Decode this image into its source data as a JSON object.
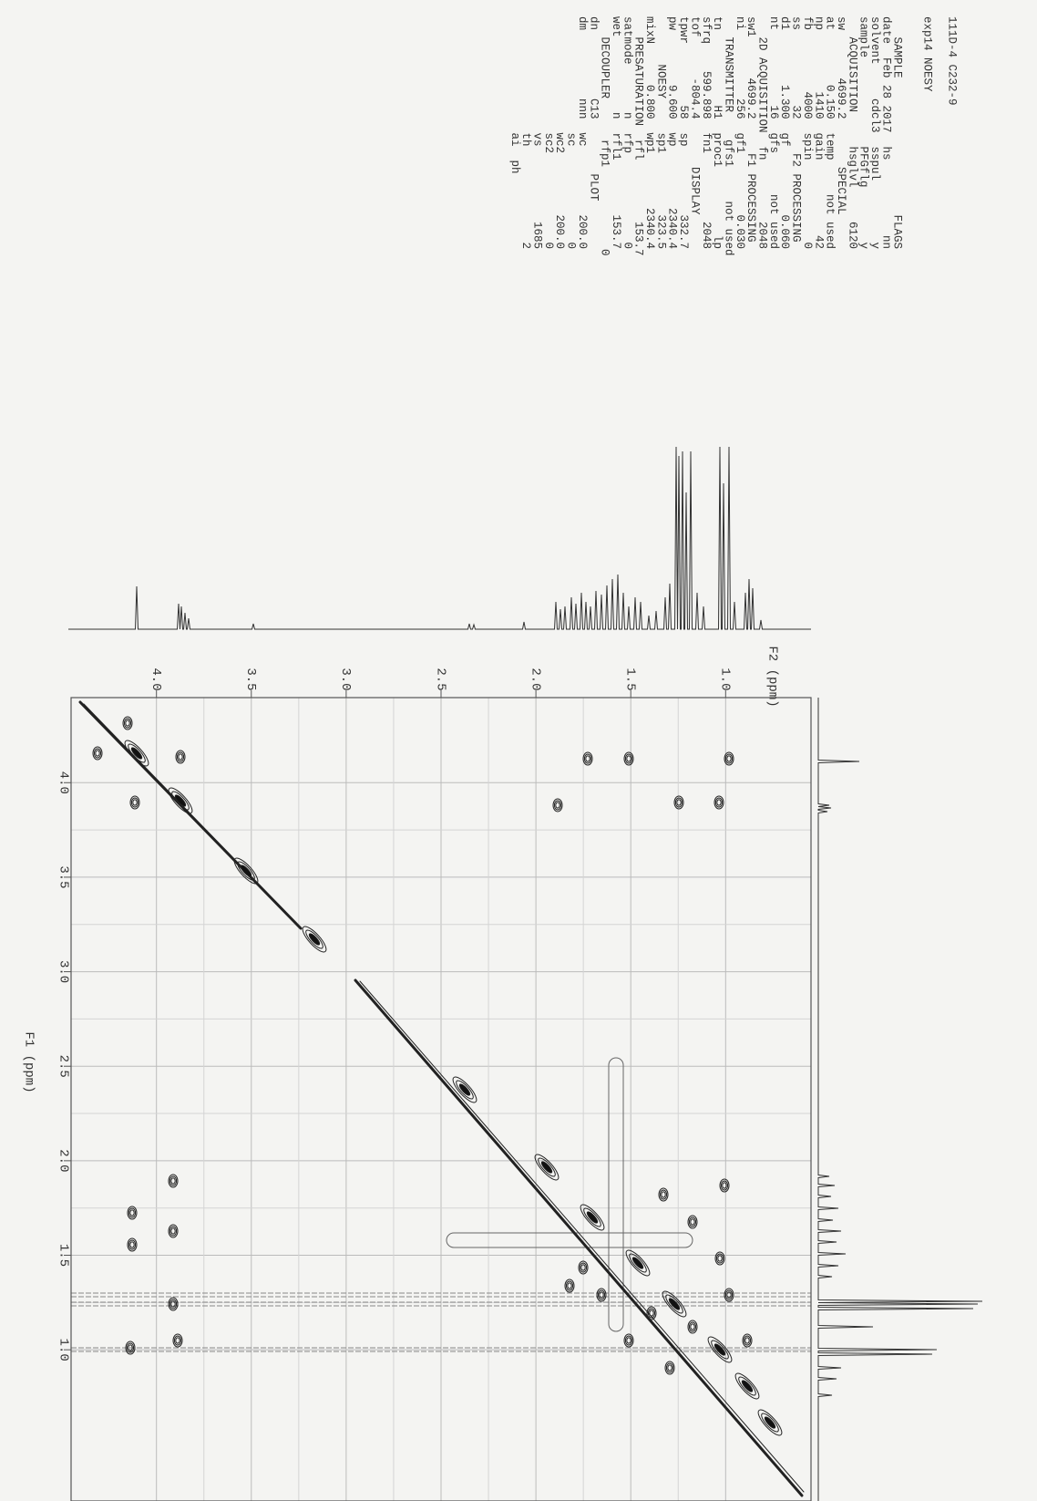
{
  "header": {
    "title": "111D-4 C232-9",
    "experiment": "exp14 NOESY"
  },
  "parameters": [
    "   SAMPLE                    FLAGS",
    "date  Feb 28 2017  hs           nn",
    "solvent     cdcl3  sspul         y",
    "sample             PFGflg        y",
    "   ACQUISITION     hsglvl     6120",
    "sw       4699.2       SPECIAL",
    "at        0.150  temp     not used",
    "np         1410  gain           42",
    "fb         4000  spin            0",
    "ss           32     F2 PROCESSING",
    "d1        1.300  gf          0.060",
    "nt           16  gfs      not used",
    "   2D ACQUISITION  fn         2048",
    "sw1      4699.2     F1 PROCESSING",
    "ni          256  gf1         0.030",
    "   TRANSMITTER    gfs1     not used",
    "tn           H1  proc1          lp",
    "sfrq    599.898  fn1          2048",
    "tof      -804.4       DISPLAY",
    "tpwr         58  sp          332.7",
    "pw        9.600  wp         2340.4",
    "       NOESY     sp1         323.5",
    "mixN      0.800  wp1        2340.4",
    "   PRESATURATION  rfl         153.7",
    "satmode       n  rfp             0",
    "wet           n  rfl1        153.7",
    "   DECOUPLER      rfp1            0",
    "dn          C13        PLOT",
    "dm          nnn  wc          200.0",
    "                 sc              0",
    "                 wc2         200.0",
    "                 sc2             0",
    "                 vs           1685",
    "                 th              2",
    "                 ai  ph"
  ],
  "chart_data": {
    "type": "nmr-2d",
    "x_label": "F2 (ppm)",
    "y_label": "F1 (ppm)",
    "xlim": [
      4.45,
      0.55
    ],
    "xticks": [
      {
        "value": 4,
        "label": "4.0"
      },
      3.5,
      {
        "value": 3,
        "label": "3.0"
      },
      2.5,
      {
        "value": 2,
        "label": "2.0"
      },
      1.5,
      {
        "value": 1,
        "label": "1.0"
      }
    ],
    "ylim": [
      4.45,
      0.2
    ],
    "yticks": [
      {
        "value": 4,
        "label": "4.0"
      },
      3.5,
      {
        "value": 3,
        "label": "3.0"
      },
      2.5,
      {
        "value": 2,
        "label": "2.0"
      },
      1.5,
      {
        "value": 1,
        "label": "1.0"
      }
    ],
    "grid": true
  }
}
